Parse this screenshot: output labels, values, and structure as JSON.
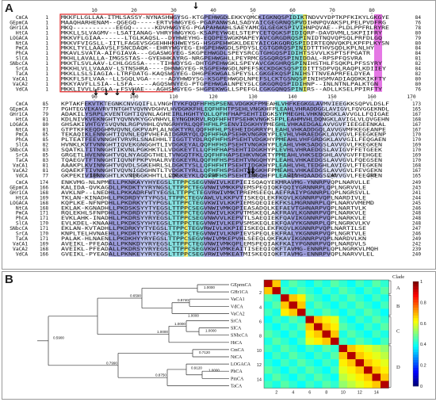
{
  "panels": {
    "a": "A",
    "b": "B"
  },
  "alignment": {
    "names": [
      "CmCA",
      "GEpmCA",
      "GHr1CA",
      "HtCA",
      "LOGACA",
      "NtCA",
      "PmCA",
      "PhCA",
      "SlCA",
      "SNbcCA",
      "SrCA",
      "TaCA",
      "VaCA1",
      "VaCA2",
      "VdCA"
    ],
    "blocks": [
      {
        "ruler": [
          "10",
          "20",
          "30",
          "40",
          "50",
          "60",
          "70",
          "80"
        ],
        "start": [
          "1",
          "1",
          "1",
          "1",
          "1",
          "1",
          "1",
          "1",
          "1",
          "1",
          "1",
          "1",
          "1",
          "1",
          "1"
        ],
        "end": [
          "84",
          "76",
          "78",
          "80",
          "79",
          "80",
          "84",
          "84",
          "81",
          "82",
          "84",
          "82",
          "80",
          "80",
          "76"
        ],
        "seqs": [
          "MKKFLLGLLAA-ITMLSASSY-NYNASHWGYSG-KTGPEHWGDLEKKYQMCKIGKNQSPIDIKTNDVVYDPTKPFKIKYLGKGYE",
          "MAAQHARHENAM--QGEGQ-----ERTVHWGYEG-PGAPANWSALSADYAICGEGRNQSPVDIHNPQVAKSPLPELPVDFRG",
          "MKQ-----------EEGQ------KDVHWGYEG-PGAPAHWAHLSAEYAMCGLGEGKSPIVIHNPQVAE--PLDLPPFRLRYRE",
          "MKKLLSLVAGMV--LSATIANAG-VHRYHWGYKG-KSAPEYWGELSTEPYCETQGKSPIDIQRP-DAVDVMLLSKPIIFRY",
          "MKKVFLGIAA------LTGLKAQSL--DYHWEYHG-EQDPESWGKMAPEYAVCGRGDRQSPINIDTNQVQPSQLPRFDLGQ",
          "MKKVFVIGSLL-IITLFAGEVSGGEHHHKHWEYSG-HSGPEHWGKLDEEYAICGKGQRQSPIDIRTEQNVQKPLKPFPLKYSN",
          "MKKLTYLLAAAVSLFSNCDAQK--EHRYWGYEG-EHGPEHWGDLSPDYSLCGTGDRQSPINIDTTTHVSQDLKPLNLHY",
          "MKAVLSVATA-AIFGIAVA---GGASWGYEG-SKGPEHWGDLSPEYSRCGTGHGQSPIDIHTSSVVLKSPTSFPGATR",
          "MKHLLAVALLA-IMGSSTAS--GYEHHKAYRG-NRGPEHWGHLLPEYRMCGSGQRQSPINIDDAL-RPSPFQSVRA",
          "MKKTLSVLAAV-LCHLGGSSA----TIHWDYSG-DHTGPEHWGKLSPEYAVCGKGHRQSPINIHSTHLFSQKPLPFSSYRY",
          "MKKHLVLLVAAAV-LSTNSHRA----DHNWGYEG-RSGPEHWGDLNPEFSKCKDGKSQSPIDITTSDPVQLRAQPLKDIIEY",
          "MKKLLSLSIAGIA-LTRFDATG-KAQSWGYEG-DHGPEKWGALSPEYSLCGKGEKQSPINIHSTTNVEAPRFELDYEA",
          "MKKFLSFLVAA--LLSGQLVGA-----ADYHWDYSG-KSGPEHWGDLNPEFSLCKTGSNQSPINIHSMVADIAQDKKIKFTY",
          "MKKYAVFLLSIA--LSFA-----AGQSWNYEG-PTGPEHWGALNPEYSLCGKGQRQSPIDIHNP--INLNTNLPALKTGN",
          "MKKLIVVLLFGLA--FSVHAE---AGHSWGYEG-SHGPEKWGLLSPEFGLCGKGQNQSPINIRS--ADLLKSELPPIRFTY"
        ]
      },
      {
        "ruler": [
          "90",
          "100",
          "110",
          "120",
          "130",
          "140",
          "150",
          "160",
          "170"
        ],
        "start": [
          "85",
          "77",
          "79",
          "81",
          "80",
          "81",
          "85",
          "85",
          "82",
          "83",
          "85",
          "83",
          "81",
          "81",
          "77"
        ],
        "end": [
          "173",
          "165",
          "167",
          "168",
          "167",
          "167",
          "170",
          "170",
          "169",
          "170",
          "169",
          "170",
          "168",
          "167",
          "165"
        ],
        "seqs": [
          "KPTAKFEKVTKTEGNKCNVGQIFLLVNGHTYKFQQFHFHSPSENLVDGKKFPMEAHLVHFKEGKGLAVMVIEEGKKSQPVLDSLF",
          "PGHTEGVEKAVRVTNTGHTVQVNVDGHVLHVDGKKFHLEQFHFHTPSEHLVNGKHFPLEAHLVHRADDGGLAVIGVLFQVGGEKNDL",
          "ADAKILYSRPLKVENTGHTIQVNLAGHEIRLHGHTYQLLQFHFHAPSEHTIDGKSYPMEGHLVHKNQDGKLAVVGLLFQIGAE",
          "KDLNIVKVEKNGHTYQVNVKYGGVNHVLEYNGDKRVLRQFHFHTPSEHKVNGKSFPLEAHMVHLDQNGKLAVIGLVLQVGEHN",
          "GHSAKIVHTGYSVQVNLRGPVHHLQVNGRHYRLQQFHFHLPSENVIDGKHYPMEGHLVHKAEDGALAVVGVFIEEGEENKAL",
          "GTPTKFKEQDGHMVQVNLGKPVAPLALNGKTYRLQQFHFHLPSEHEIDGRRYPLEAHLVHKADDGQLAVVGVMFKEGEANPE",
          "TEKAQIKLENNGHTIQVNLEQPVHEFAIDGRRYQLQQFHFHAPSEHKVNGRKYPLEVHLVHRAEDGKLAVVGVLFEEGKENP",
          "PLTEATFEEVNNGHTVRVRLSNAEHHLTIGGTTYDLRQFHFHSPSEHTVDGKHYPMEAHLVHFGRDGKLAVVGILFEQGAEN",
          "HVNKLKVTVNNGHTIQVEKGNGGHTLIVDGKEYALQQFHFHSPSEHTVNGKHYPLEAHLVHKSADGSLAVVGVLFKEGKEN",
          "SQATKLTITNNGHTIKVNLPGKHKTLLVDGKEYTLLQFHFHAPSEHTIDGKHYPLEVHLVHRAEDGSLAVIGVFFETGEEK",
          "GRGETLHVENNGHTVQLNYAGDGTHELTVNGQTFKLQQFHFHAPSEHKVNGKTYPMEAHLVHKSEDGHLAVVGVFFEHGEE",
          "TQAEGVTFTNNGHTIQVNFPKPVHALRVEGKEYRLQQFHFHSPSEHTVNGQHYPLEAHLVHKAEDGSLAVVGVLFQEGSEN",
          "AAAKPLKVINNGHTVQVDLSGKEHRLSLDGKTYSLLQFHFHTPSEHTIDGKHYPLEAHLVHLTEDGHLAVIGVLFTEGKEN",
          "GQAEKFTIVNNGHTVQVNIGDGHNTLTVDGKTYRLLQFHFHSPSEHTVDGKHFPMEAHLVHKAEDGSLAVVGVLFEVGEKN",
          "GKPEKIVIENNGHTLKVNLGGKHHTLLLDGKEYKLQQFHFHSPSEHTINGQHFPLEAHLVHQAADGSLAVVGVLFEEGKEN"
        ]
      },
      {
        "ruler": [
          "180",
          "190",
          "200",
          "210",
          "220",
          "230",
          "240",
          "250"
        ],
        "start": [
          "174",
          "166",
          "168",
          "169",
          "168",
          "168",
          "171",
          "171",
          "170",
          "171",
          "170",
          "171",
          "169",
          "168",
          "166"
        ],
        "end": [
          "249",
          "243",
          "241",
          "244",
          "245",
          "246",
          "248",
          "248",
          "248",
          "247",
          "246",
          "249",
          "242",
          "239",
          "240"
        ],
        "seqs": [
          "ENKVMG-NLNPMELLPKNKAYYHYEGSLTTPPCSEGVNWIVLKEPIEISQAQYEKMRAVMG-YNNRPVQPLNARVLLE",
          "KALIDA-QVKAGDLLPKDKTYYRYNGSLTTPPCTEGVNWIVMKKPVEMSPEQIQKFQQIYGRNNRPLQPLNGRVVLE",
          "AVKLNP--LNEDHLLPKKADRFWTYEGSLTTPPCTEGVRWIVMKTPREMSEEQLAEFRAIYPGNNRPLQPLNGRSVLL",
          "TKLAN-KINADHLLPKDRDYYTYPGSLTTPPCTEGVAWLVLKKPVTISKEQLEKFKQVLKGNNRPVQPLNARDIVLE",
          "KQPLKE-NFNPDHLLPKDRKYYTYPGSLTTPPCTEGVKWIVLKKPIEMSQEQIEKFKSLMGRNNRPLQPLNARVVMEMD",
          "EKLAK-KGNADHLLPKDSKSYYTYEGSLTTPPCSEGVNWIVMKQPIEASADQLKEFAEVTGHNARPVQPLNARTVLK",
          "RQLEKHLSFNPDHLLPKDRDYYTYDGSLTTPPCTEGVNWIVLKKPVTMSKEQLAKFRAVLKGNNRPVQPLNARKVLE",
          "EVKLAHK-INADHLLPKDRSYYRYEGSLTTPPCSEGVNWVVLKEPVTLSAEQIEKFQAVIKGNNRPVQPLNARKVLE",
          "EVLKDEL-KNAAHLLPKDKSYYHYEGSLTTPPCTEGVNWIVLKEPVSMSKEQLEKFQAVYKGNNRPLQPLNGRKVLKV",
          "EKLAN-KVTADHLLPKDRKYYTYEGSLTTPPCTEGVRWIVLKKPIEISKEQLEKFKQVLKGNNRPVQPLNARTILSE",
          "KNPLTELHVNAEHLLPKDRTYYTYPGSLTTPPCTEGVNWIVLKNPIEVSPEQLEKFRALYKGNNRPVQPLNGRTVLE",
          "PALAK-HLNAENLLPKDKHYYRYEGSLTTPPCSEGVHWIVMKEPVHLSEEQLQKFKAVIKGNNRPVQPLNARDVLKN",
          "AVEIKL-PFEADALLPKNKDYYRYEGSLTTPPCTEGVNWIVMKQPLEMSPEQIAKFKAIYPGNNRPVQPLNARDVLS",
          "AVEIKL-PFEADALLPKDRSYYRYEGSLTTPPCSEGVKWIVMKEAITISEEQIQKFTAVMG-ENNRPLQPLNGRKVLMQH",
          "GVEIKL-PYEADALLPKNKEYYRYEGSLTTPPCSEGVRWIVMKEATMISKEQIQKFTAVMG-ENNRPVQPLNARVVLEL"
        ]
      }
    ],
    "arrow_symbol": "↓"
  },
  "tree": {
    "leaves": [
      "GEprmCA",
      "GHr1CA",
      "VaCA1",
      "VdCA",
      "VaCA2",
      "SrCA",
      "SlCA",
      "SNbcCA",
      "HtCA",
      "CmCA",
      "NtCA",
      "LOGACA",
      "PhCA",
      "PmCA",
      "TaCA"
    ],
    "bootstrap": {
      "n1": "1.0000",
      "n2": "0.9740",
      "n3": "1.0000",
      "n4": "0.6590",
      "n5": "1.0000",
      "n6": "1.0000",
      "n7": "1.0000",
      "n8": "0.7120",
      "n9": "1.0000",
      "n10": "0.9120",
      "n11": "0.8750",
      "n12": "0.7990",
      "root": "0.5900"
    },
    "row_index_labels": [
      "2",
      "4",
      "6",
      "8",
      "10",
      "12",
      "14"
    ]
  },
  "heatmap": {
    "x_ticks": [
      "2",
      "4",
      "6",
      "8",
      "10",
      "12",
      "14"
    ],
    "colorbar_ticks": [
      "1",
      "0.8",
      "0.6",
      "0.4",
      "0.2",
      "0"
    ],
    "clade_title": "Clade",
    "clades": [
      "A",
      "B",
      "C",
      "D"
    ]
  },
  "colors": {
    "dark_blue": "#8c8cd6",
    "mid_blue": "#aab4e6",
    "light_blue": "#d6dcf4",
    "cyan": "#6ed7d7",
    "yellow": "#f0e650",
    "magenta": "#e060e0",
    "red_box": "#e02020"
  }
}
